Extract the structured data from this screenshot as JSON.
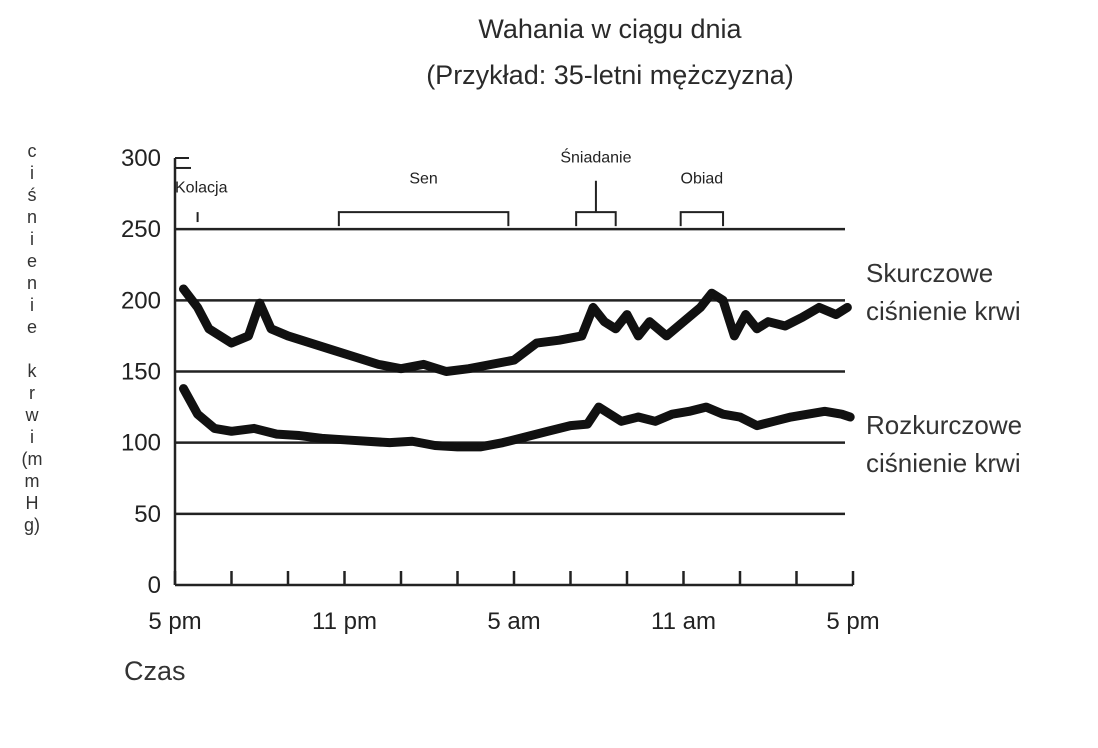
{
  "chart_data": {
    "type": "line",
    "title": "Wahania w ciągu dnia",
    "subtitle": "(Przykład: 35-letni mężczyzna)",
    "ylabel": "ciśnienie krwi (mmHg)",
    "xlabel": "Czas",
    "ylim": [
      0,
      300
    ],
    "yticks": [
      "0",
      "50",
      "100",
      "150",
      "200",
      "250",
      "300"
    ],
    "ytick_values": [
      0,
      50,
      100,
      150,
      200,
      250,
      300
    ],
    "xlim": [
      0,
      24
    ],
    "xticks": [
      "5 pm",
      "11 pm",
      "5 am",
      "11 am",
      "5 pm"
    ],
    "xtick_values": [
      0,
      6,
      12,
      18,
      24
    ],
    "gridlines_y": [
      50,
      100,
      150,
      200,
      250
    ],
    "annotations": [
      {
        "label": "Kolacja",
        "start": 0,
        "end": 0.8
      },
      {
        "label": "Sen",
        "start": 5.8,
        "end": 11.8
      },
      {
        "label": "Śniadanie",
        "start": 14.2,
        "end": 15.6
      },
      {
        "label": "Obiad",
        "start": 17.9,
        "end": 19.4
      }
    ],
    "series": [
      {
        "name": "Skurczowe ciśnienie krwi",
        "x": [
          0.3,
          0.8,
          1.2,
          1.6,
          2.0,
          2.6,
          3.0,
          3.4,
          4.0,
          4.8,
          5.6,
          6.4,
          7.2,
          8.0,
          8.8,
          9.6,
          10.4,
          11.2,
          12.0,
          12.8,
          13.6,
          14.4,
          14.8,
          15.2,
          15.6,
          16.0,
          16.4,
          16.8,
          17.4,
          18.0,
          18.6,
          19.0,
          19.4,
          19.8,
          20.2,
          20.6,
          21.0,
          21.6,
          22.2,
          22.8,
          23.4,
          23.8
        ],
        "values": [
          208,
          195,
          180,
          175,
          170,
          175,
          198,
          180,
          175,
          170,
          165,
          160,
          155,
          152,
          155,
          150,
          152,
          155,
          158,
          170,
          172,
          175,
          195,
          185,
          180,
          190,
          175,
          185,
          175,
          185,
          195,
          205,
          200,
          175,
          190,
          180,
          185,
          182,
          188,
          195,
          190,
          195
        ]
      },
      {
        "name": "Rozkurczowe ciśnienie krwi",
        "x": [
          0.3,
          0.8,
          1.4,
          2.0,
          2.8,
          3.6,
          4.4,
          5.2,
          6.0,
          6.8,
          7.6,
          8.4,
          9.2,
          10.0,
          10.8,
          11.6,
          12.4,
          13.2,
          14.0,
          14.6,
          15.0,
          15.4,
          15.8,
          16.4,
          17.0,
          17.6,
          18.2,
          18.8,
          19.4,
          20.0,
          20.6,
          21.2,
          21.8,
          22.4,
          23.0,
          23.6,
          23.9
        ],
        "values": [
          138,
          120,
          110,
          108,
          110,
          106,
          105,
          103,
          102,
          101,
          100,
          101,
          98,
          97,
          97,
          100,
          104,
          108,
          112,
          113,
          125,
          120,
          115,
          118,
          115,
          120,
          122,
          125,
          120,
          118,
          112,
          115,
          118,
          120,
          122,
          120,
          118
        ]
      }
    ]
  },
  "labels": {
    "ylabel_chars": [
      "c",
      "i",
      "ś",
      "n",
      "i",
      "e",
      "n",
      "i",
      "e",
      "",
      "k",
      "r",
      "w",
      "i",
      "(m",
      "m",
      "H",
      "g)"
    ],
    "systolic_line1": "Skurczowe",
    "systolic_line2": "ciśnienie krwi",
    "diastolic_line1": "Rozkurczowe",
    "diastolic_line2": "ciśnienie krwi"
  }
}
